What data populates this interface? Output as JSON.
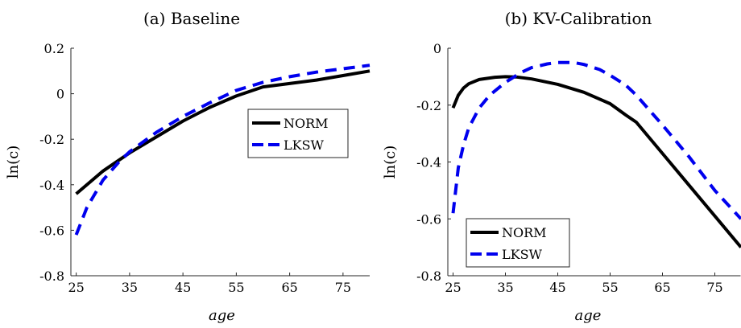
{
  "chart_data": [
    {
      "type": "line",
      "title": "(a) Baseline",
      "xlabel": "age",
      "ylabel": "ln(c)",
      "xlim": [
        24,
        80
      ],
      "ylim": [
        -0.8,
        0.2
      ],
      "xticks": [
        25,
        35,
        45,
        55,
        65,
        75
      ],
      "yticks": [
        -0.8,
        -0.6,
        -0.4,
        -0.2,
        0,
        0.2
      ],
      "ytick_labels": [
        "-0.8",
        "-0.6",
        "-0.4",
        "-0.2",
        "0",
        "0.2"
      ],
      "legend": "right",
      "grid": false,
      "series": [
        {
          "name": "NORM",
          "color": "#000000",
          "style": "solid",
          "x": [
            25,
            30,
            35,
            40,
            45,
            50,
            55,
            60,
            65,
            70,
            75,
            80
          ],
          "y": [
            -0.44,
            -0.34,
            -0.26,
            -0.19,
            -0.12,
            -0.06,
            -0.01,
            0.03,
            0.045,
            0.06,
            0.08,
            0.1
          ]
        },
        {
          "name": "LKSW",
          "color": "#0000ee",
          "style": "dashed",
          "x": [
            25,
            27,
            30,
            33,
            35,
            40,
            45,
            50,
            55,
            60,
            65,
            70,
            75,
            80
          ],
          "y": [
            -0.62,
            -0.5,
            -0.38,
            -0.3,
            -0.255,
            -0.17,
            -0.1,
            -0.04,
            0.015,
            0.05,
            0.075,
            0.095,
            0.11,
            0.125
          ]
        }
      ]
    },
    {
      "type": "line",
      "title": "(b) KV-Calibration",
      "xlabel": "age",
      "ylabel": "ln(c)",
      "xlim": [
        24,
        80
      ],
      "ylim": [
        -0.8,
        0
      ],
      "xticks": [
        25,
        35,
        45,
        55,
        65,
        75
      ],
      "yticks": [
        -0.8,
        -0.6,
        -0.4,
        -0.2,
        0
      ],
      "ytick_labels": [
        "-0.8",
        "-0.6",
        "-0.4",
        "-0.2",
        "0"
      ],
      "legend": "bottom-left",
      "grid": false,
      "series": [
        {
          "name": "NORM",
          "color": "#000000",
          "style": "solid",
          "x": [
            25,
            26,
            27,
            28,
            30,
            33,
            35,
            37,
            40,
            45,
            50,
            55,
            58,
            60,
            65,
            70,
            75,
            80
          ],
          "y": [
            -0.21,
            -0.165,
            -0.14,
            -0.125,
            -0.11,
            -0.102,
            -0.1,
            -0.101,
            -0.108,
            -0.127,
            -0.155,
            -0.195,
            -0.235,
            -0.26,
            -0.37,
            -0.48,
            -0.59,
            -0.7
          ]
        },
        {
          "name": "LKSW",
          "color": "#0000ee",
          "style": "dashed",
          "x": [
            25,
            26,
            27,
            28,
            30,
            32,
            35,
            38,
            40,
            43,
            45,
            48,
            50,
            53,
            55,
            58,
            60,
            65,
            70,
            75,
            80
          ],
          "y": [
            -0.58,
            -0.42,
            -0.34,
            -0.28,
            -0.21,
            -0.165,
            -0.12,
            -0.085,
            -0.068,
            -0.055,
            -0.05,
            -0.05,
            -0.057,
            -0.075,
            -0.095,
            -0.13,
            -0.165,
            -0.27,
            -0.38,
            -0.5,
            -0.6
          ]
        }
      ]
    }
  ]
}
